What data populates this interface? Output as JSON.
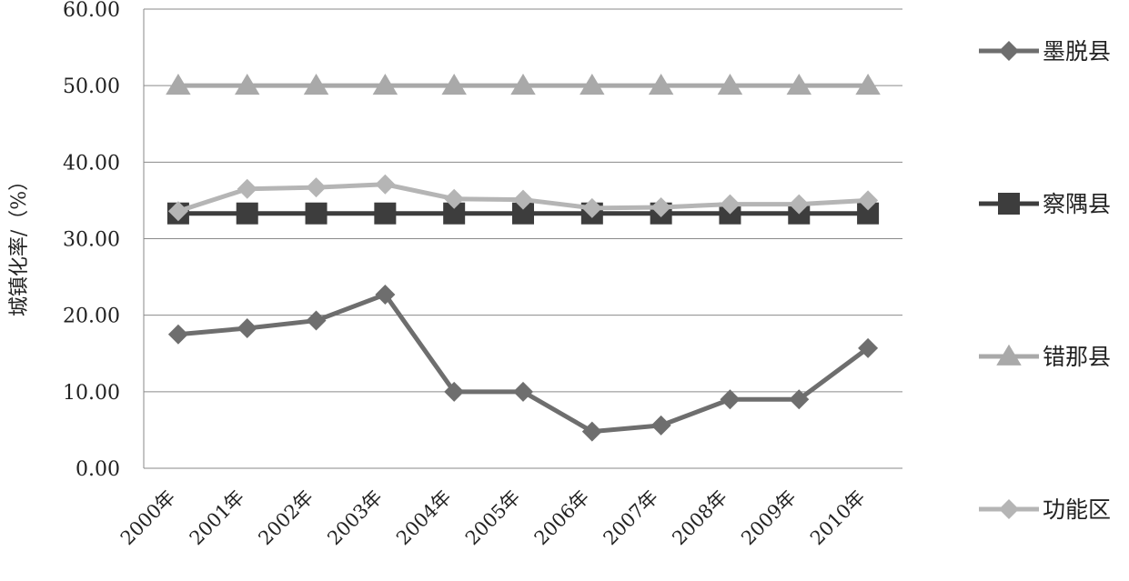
{
  "chart_data": {
    "type": "line",
    "title": "",
    "xlabel": "",
    "ylabel": "城镇化率/（%）",
    "ylim": [
      0,
      60
    ],
    "yticks": [
      "0.00",
      "10.00",
      "20.00",
      "30.00",
      "40.00",
      "50.00",
      "60.00"
    ],
    "grid": true,
    "legend_position": "right",
    "categories": [
      "2000年",
      "2001年",
      "2002年",
      "2003年",
      "2004年",
      "2005年",
      "2006年",
      "2007年",
      "2008年",
      "2009年",
      "2010年"
    ],
    "series": [
      {
        "name": "墨脱县",
        "color": "#6e6e6e",
        "marker": "diamond",
        "values": [
          17.5,
          18.3,
          19.3,
          22.7,
          10.0,
          10.0,
          4.8,
          5.6,
          9.0,
          9.0,
          15.7
        ]
      },
      {
        "name": "察隅县",
        "color": "#3d3d3d",
        "marker": "square",
        "values": [
          33.3,
          33.3,
          33.3,
          33.3,
          33.3,
          33.3,
          33.3,
          33.3,
          33.3,
          33.3,
          33.3
        ]
      },
      {
        "name": "错那县",
        "color": "#a9a9a9",
        "marker": "triangle",
        "values": [
          50.0,
          50.0,
          50.0,
          50.0,
          50.0,
          50.0,
          50.0,
          50.0,
          50.0,
          50.0,
          50.0
        ]
      },
      {
        "name": "功能区",
        "color": "#b5b5b5",
        "marker": "diamond",
        "values": [
          33.6,
          36.5,
          36.7,
          37.1,
          35.2,
          35.1,
          34.0,
          34.1,
          34.5,
          34.5,
          35.0
        ]
      }
    ]
  }
}
